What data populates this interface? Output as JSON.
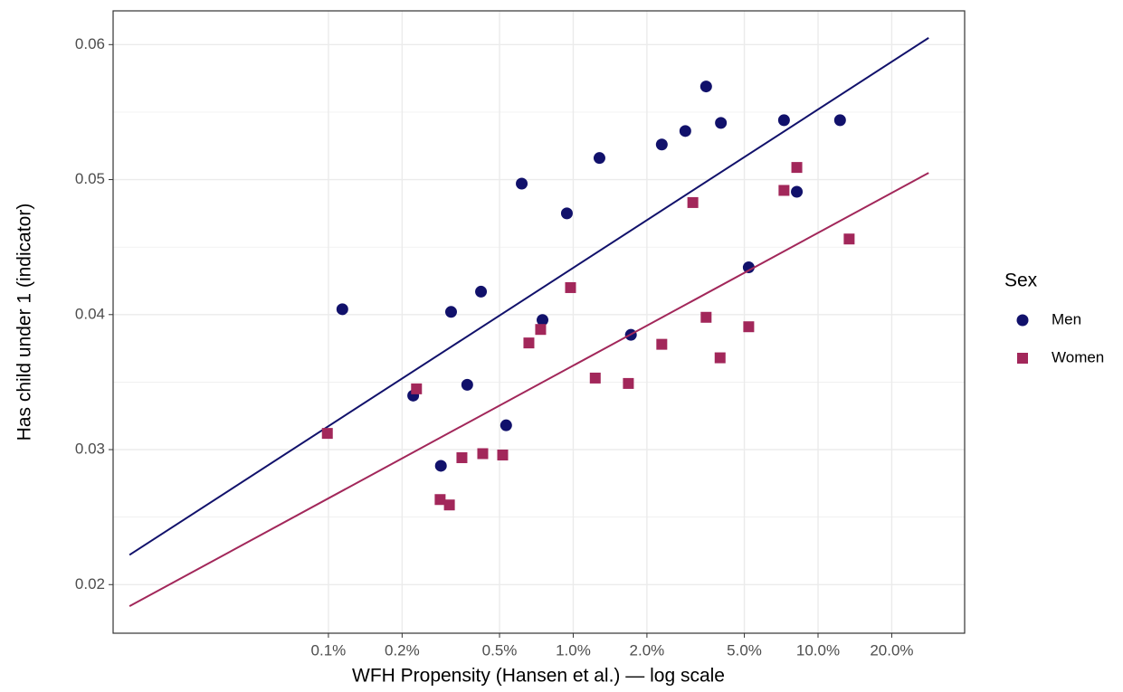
{
  "chart_data": {
    "type": "scatter",
    "x_label": "WFH Propensity (Hansen et al.) — log scale",
    "y_label": "Has child under 1 (indicator)",
    "legend_title": "Sex",
    "xlog": true,
    "grid": true,
    "legend_position": "right",
    "xlim": [
      0.0132,
      39.7
    ],
    "ylim": [
      0.0164,
      0.0625
    ],
    "xticks": [
      {
        "value": 0.1,
        "label": "0.1%"
      },
      {
        "value": 0.2,
        "label": "0.2%"
      },
      {
        "value": 0.5,
        "label": "0.5%"
      },
      {
        "value": 1,
        "label": "1.0%"
      },
      {
        "value": 2,
        "label": "2.0%"
      },
      {
        "value": 5,
        "label": "5.0%"
      },
      {
        "value": 10,
        "label": "10.0%"
      },
      {
        "value": 20,
        "label": "20.0%"
      }
    ],
    "yticks": [
      0.02,
      0.03,
      0.04,
      0.05,
      0.06
    ],
    "yminor": [
      0.025,
      0.035,
      0.045,
      0.055
    ],
    "series": [
      {
        "name": "Men",
        "color": "#11116b",
        "shape": "circle",
        "x": [
          0.114,
          0.222,
          0.288,
          0.317,
          0.369,
          0.42,
          0.532,
          0.616,
          0.749,
          0.942,
          1.28,
          1.72,
          2.3,
          2.87,
          3.49,
          4.01,
          5.21,
          7.26,
          8.19,
          12.3
        ],
        "values": [
          0.0404,
          0.034,
          0.0288,
          0.0402,
          0.0348,
          0.0417,
          0.0318,
          0.0497,
          0.0396,
          0.0475,
          0.0516,
          0.0385,
          0.0526,
          0.0536,
          0.0569,
          0.0542,
          0.0435,
          0.0544,
          0.0491,
          0.0544
        ],
        "fit": {
          "x": [
            0.0154,
            28.3
          ],
          "values": [
            0.0222,
            0.0605
          ]
        }
      },
      {
        "name": "Women",
        "color": "#a2275a",
        "shape": "square",
        "x": [
          0.099,
          0.229,
          0.286,
          0.312,
          0.351,
          0.427,
          0.515,
          0.659,
          0.736,
          0.975,
          1.23,
          1.68,
          2.3,
          3.08,
          3.49,
          3.98,
          5.21,
          7.26,
          8.19,
          13.4
        ],
        "values": [
          0.0312,
          0.0345,
          0.0263,
          0.0259,
          0.0294,
          0.0297,
          0.0296,
          0.0379,
          0.0389,
          0.042,
          0.0353,
          0.0349,
          0.0378,
          0.0483,
          0.0398,
          0.0368,
          0.0391,
          0.0492,
          0.0509,
          0.0456
        ],
        "fit": {
          "x": [
            0.0154,
            28.3
          ],
          "values": [
            0.0184,
            0.0505
          ]
        }
      }
    ]
  }
}
